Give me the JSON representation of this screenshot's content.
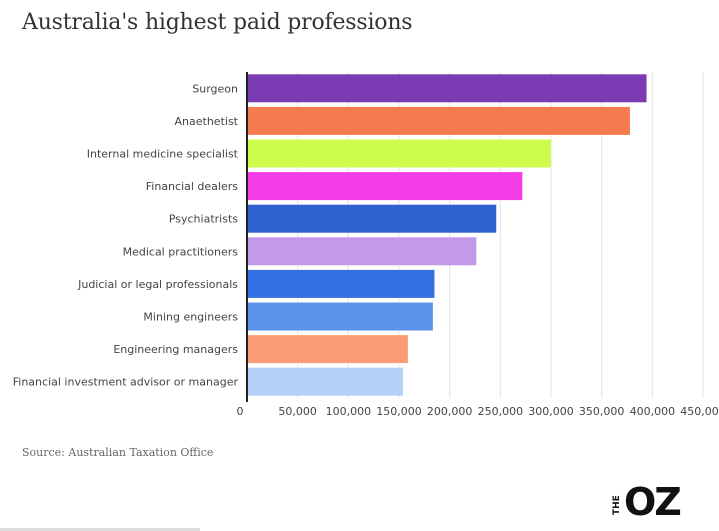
{
  "title": "Australia's highest paid professions",
  "source": "Source: Australian Taxation Office",
  "logo": {
    "the": "THE",
    "oz": "OZ"
  },
  "chart_data": {
    "type": "bar",
    "orientation": "horizontal",
    "categories": [
      "Surgeon",
      "Anaethetist",
      "Internal medicine specialist",
      "Financial dealers",
      "Psychiatrists",
      "Medical practitioners",
      "Judicial or legal professionals",
      "Mining engineers",
      "Engineering managers",
      "Financial investment advisor or manager"
    ],
    "values": [
      394303,
      377918,
      299970,
      271717,
      245996,
      226314,
      184981,
      183424,
      158774,
      153919
    ],
    "colors": [
      "#7b3bb3",
      "#f77b4f",
      "#cdfc4c",
      "#f43be8",
      "#2f62ce",
      "#c39ae8",
      "#3370e4",
      "#5c92ea",
      "#fc9c75",
      "#b5d0fb"
    ],
    "xlim": [
      0,
      450000
    ],
    "xticks": [
      0,
      50000,
      100000,
      150000,
      200000,
      250000,
      300000,
      350000,
      400000,
      450000
    ],
    "xtick_labels": [
      "0",
      "50,000",
      "100,000",
      "150,000",
      "200,000",
      "250,000",
      "300,000",
      "350,000",
      "400,000",
      "450,000"
    ],
    "grid": true
  }
}
